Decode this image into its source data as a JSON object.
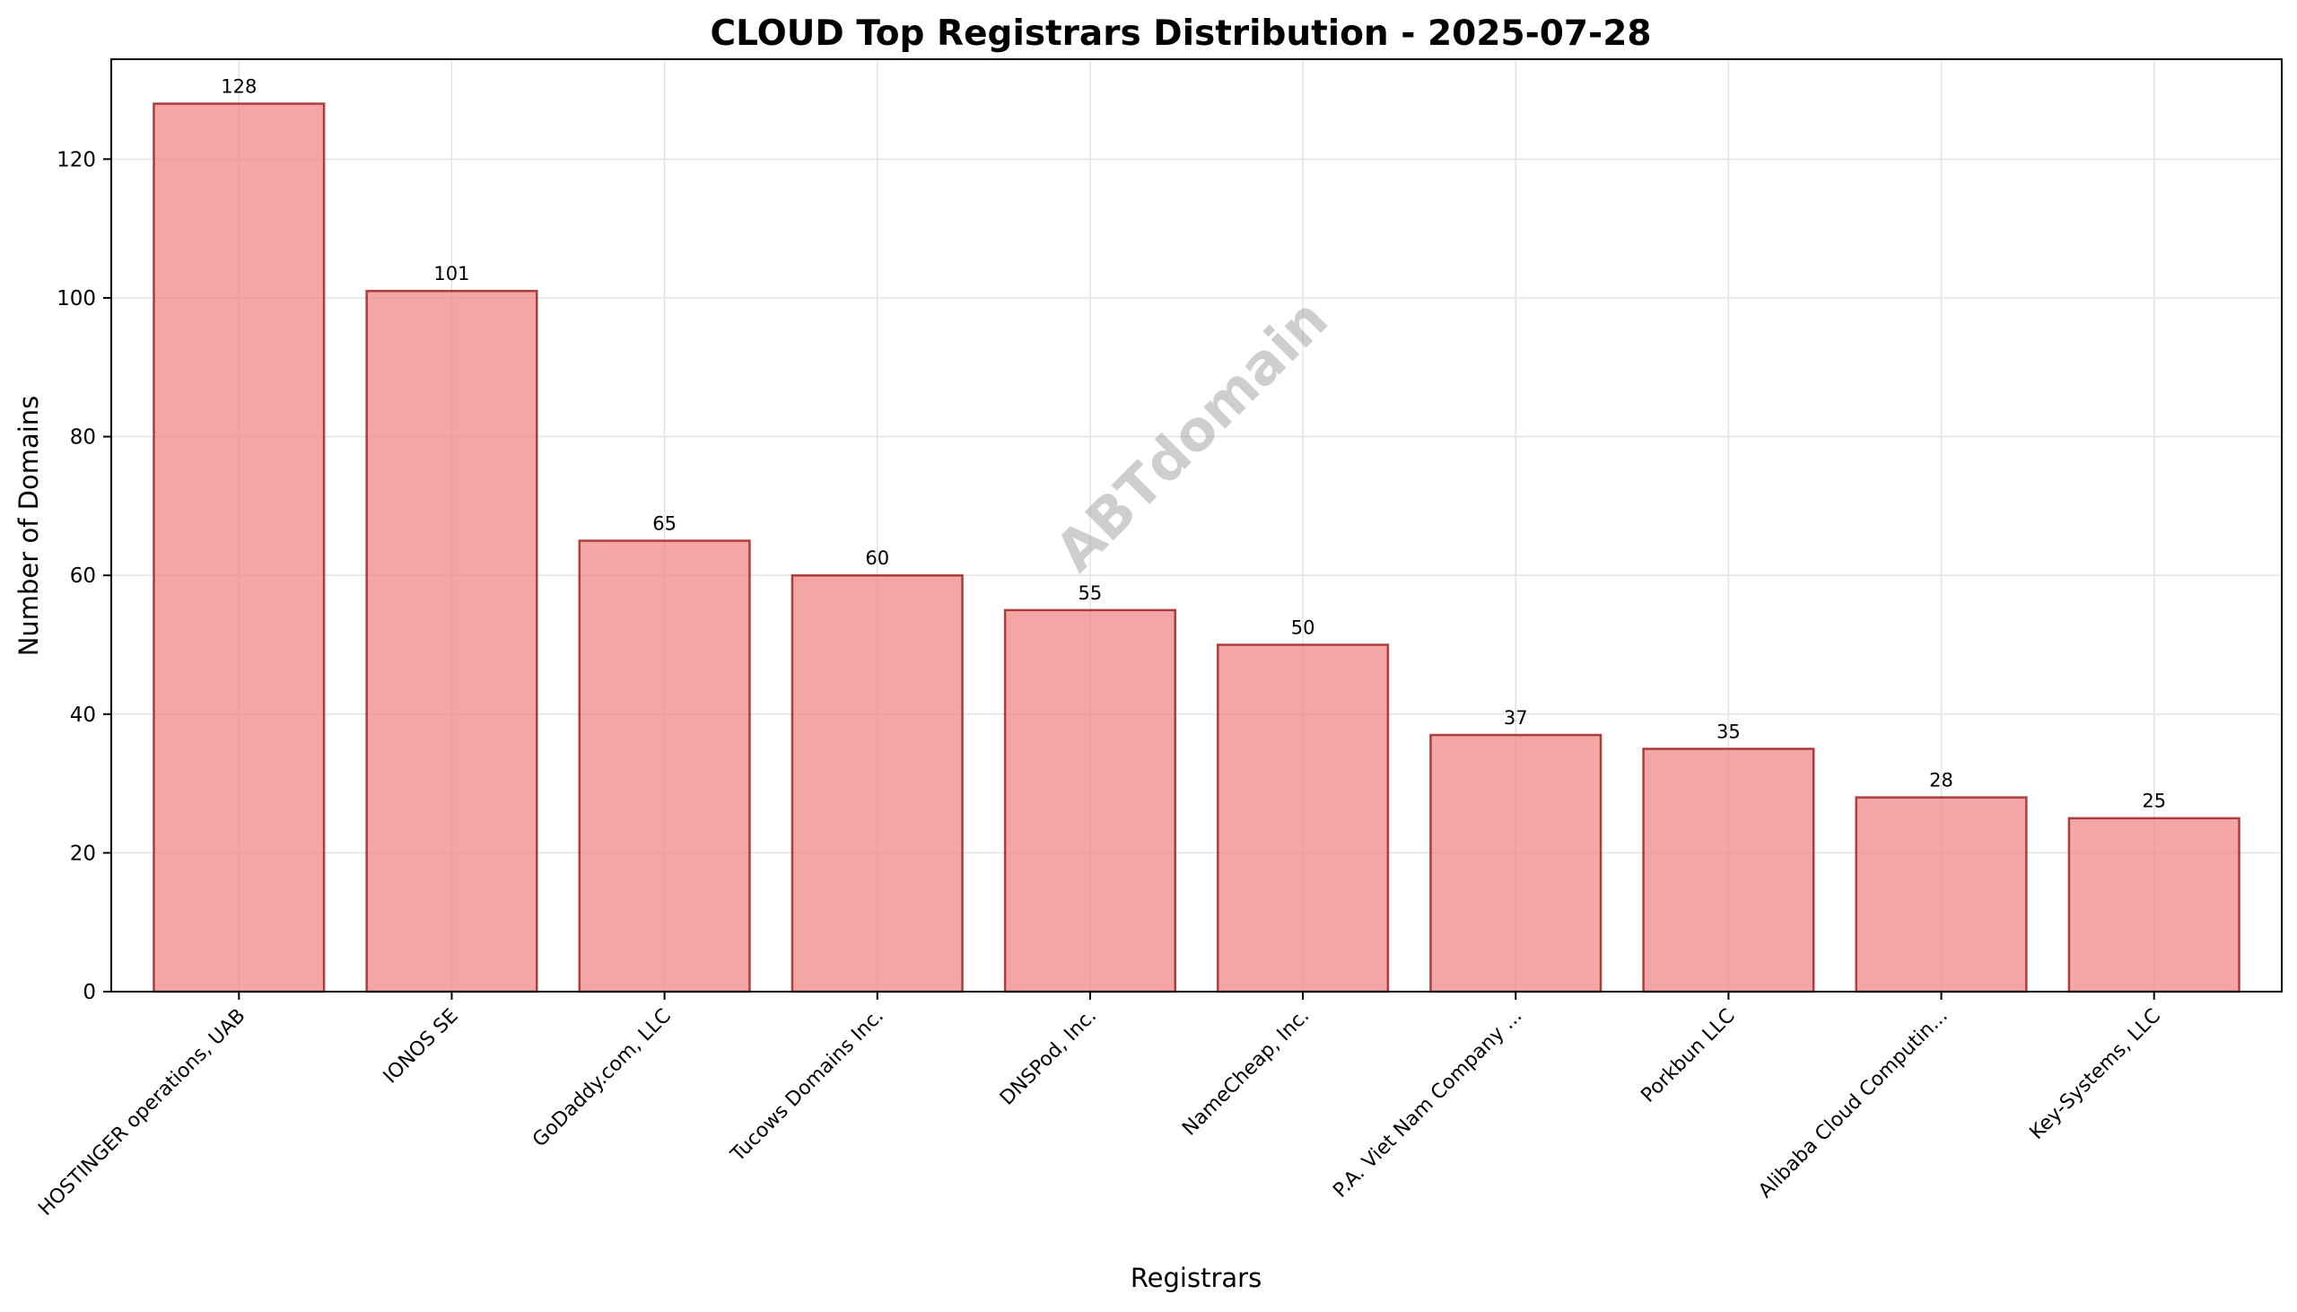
{
  "chart_data": {
    "type": "bar",
    "title": "CLOUD Top Registrars Distribution - 2025-07-28",
    "xlabel": "Registrars",
    "ylabel": "Number of Domains",
    "categories": [
      "HOSTINGER operations, UAB",
      "IONOS SE",
      "GoDaddy.com, LLC",
      "Tucows Domains Inc.",
      "DNSPod, Inc.",
      "NameCheap, Inc.",
      "P.A. Viet Nam Company ...",
      "Porkbun LLC",
      "Alibaba Cloud Computin...",
      "Key-Systems, LLC"
    ],
    "values": [
      128,
      101,
      65,
      60,
      55,
      50,
      37,
      35,
      28,
      25
    ],
    "ylim": [
      0,
      134.4
    ],
    "yticks": [
      0,
      20,
      40,
      60,
      80,
      100,
      120
    ],
    "grid": true,
    "bar_color": "#f08080",
    "bar_edge_color": "#8b0000",
    "watermark": "ABTdomain"
  }
}
